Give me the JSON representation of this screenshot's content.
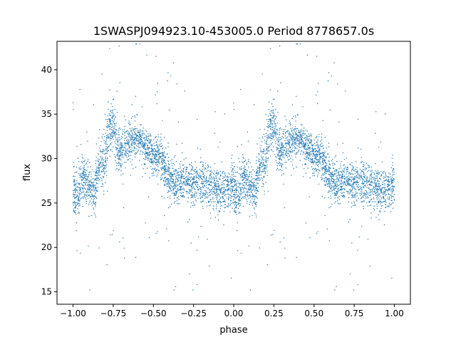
{
  "chart_data": {
    "type": "scatter",
    "title": "1SWASPJ094923.10-453005.0 Period 8778657.0s",
    "xlabel": "phase",
    "ylabel": "flux",
    "xlim": [
      -1.1,
      1.1
    ],
    "ylim": [
      13.6,
      43.2
    ],
    "xticks": [
      -1.0,
      -0.75,
      -0.5,
      -0.25,
      0.0,
      0.25,
      0.5,
      0.75,
      1.0
    ],
    "xtick_labels": [
      "−1.00",
      "−0.75",
      "−0.50",
      "−0.25",
      "0.00",
      "0.25",
      "0.50",
      "0.75",
      "1.00"
    ],
    "yticks": [
      15,
      20,
      25,
      30,
      35,
      40
    ],
    "ytick_labels": [
      "15",
      "20",
      "25",
      "30",
      "35",
      "40"
    ],
    "grid": false,
    "point_color": "#1f77b4",
    "trend_profile": {
      "phase": [
        0.0,
        0.03,
        0.05,
        0.08,
        0.1,
        0.13,
        0.15,
        0.17,
        0.19,
        0.22,
        0.25,
        0.28,
        0.3,
        0.33,
        0.36,
        0.4,
        0.45,
        0.5,
        0.55,
        0.6,
        0.65,
        0.7,
        0.75,
        0.8,
        0.85,
        0.9,
        0.95,
        1.0
      ],
      "flux": [
        26.0,
        25.8,
        27.5,
        27.5,
        27.0,
        26.0,
        28.5,
        30.0,
        29.0,
        33.0,
        34.0,
        31.0,
        30.5,
        31.5,
        32.0,
        32.5,
        31.0,
        30.5,
        30.0,
        27.5,
        27.0,
        27.5,
        27.0,
        27.5,
        27.0,
        26.5,
        26.5,
        27.5
      ]
    },
    "scatter_half_width": [
      2.2,
      2.5,
      2.0,
      2.0,
      2.2,
      2.5,
      2.0,
      2.2,
      2.5,
      2.5,
      2.8,
      2.5,
      2.2,
      2.0,
      2.0,
      2.0,
      1.8,
      1.8,
      2.0,
      2.0,
      1.8,
      1.8,
      2.0,
      2.2,
      2.0,
      2.0,
      2.0,
      2.0
    ]
  }
}
